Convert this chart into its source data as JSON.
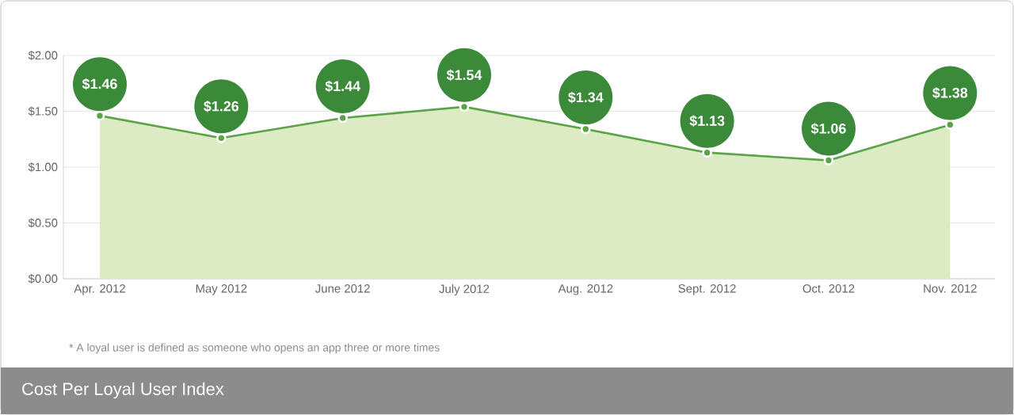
{
  "chart_data": {
    "type": "area",
    "title": "Cost Per Loyal User Index",
    "categories": [
      "Apr. 2012",
      "May 2012",
      "June 2012",
      "July 2012",
      "Aug. 2012",
      "Sept. 2012",
      "Oct. 2012",
      "Nov. 2012"
    ],
    "values": [
      1.46,
      1.26,
      1.44,
      1.54,
      1.34,
      1.13,
      1.06,
      1.38
    ],
    "value_labels": [
      "$1.46",
      "$1.26",
      "$1.44",
      "$1.54",
      "$1.34",
      "$1.13",
      "$1.06",
      "$1.38"
    ],
    "color": "#5ca348",
    "marker": "circle",
    "grid": "y",
    "ylim": [
      0,
      2
    ],
    "yticks": [
      {
        "value": 0,
        "label": "$0.00"
      },
      {
        "value": 0.5,
        "label": "$0.50"
      },
      {
        "value": 1,
        "label": "$1.00"
      },
      {
        "value": 1.5,
        "label": "$1.50"
      },
      {
        "value": 2,
        "label": "$2.00"
      }
    ],
    "annotations": [
      "* A loyal user is defined as someone who opens an app three or more times"
    ]
  }
}
